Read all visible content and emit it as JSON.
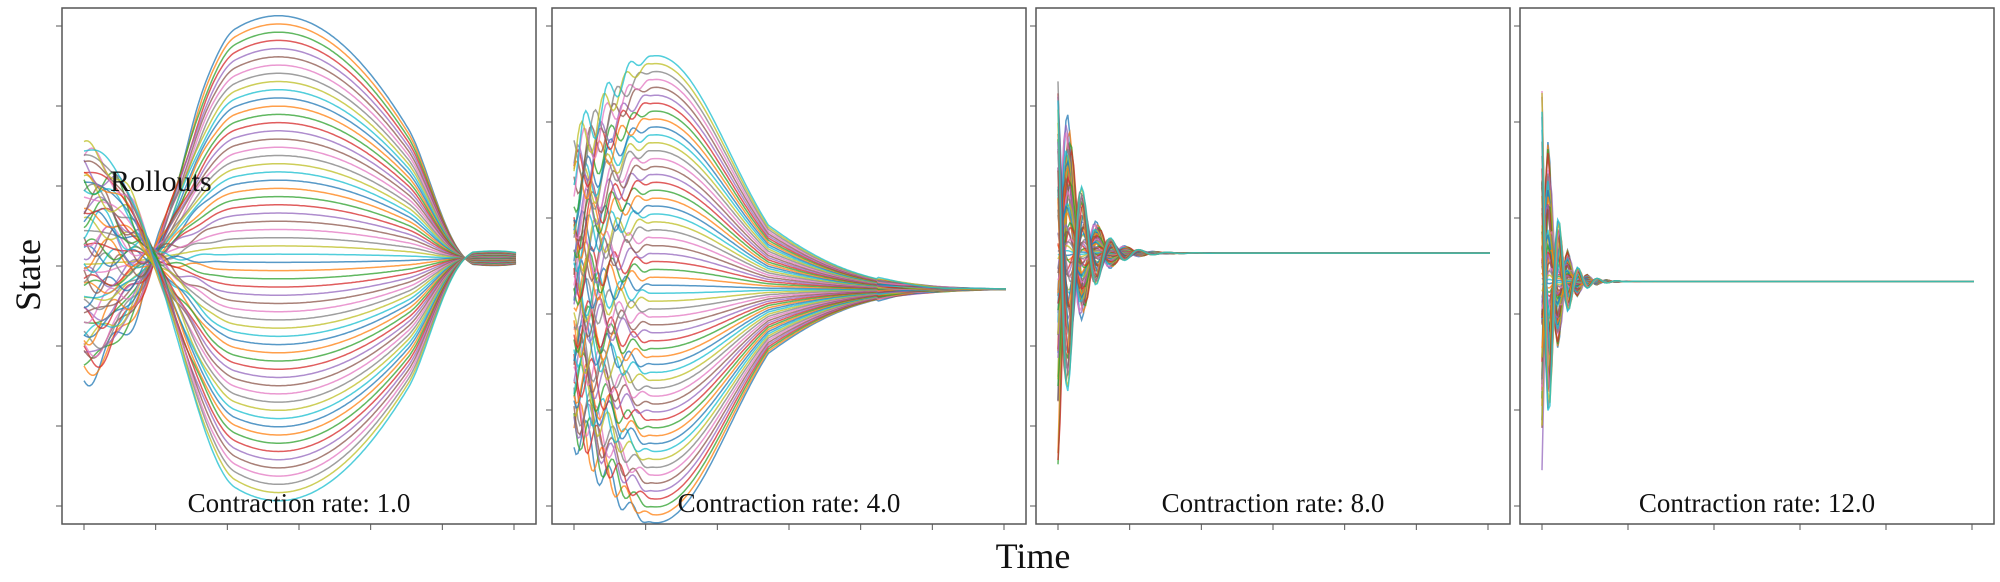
{
  "chart_data": [
    {
      "type": "line",
      "panel_label": "Contraction rate: 1.0",
      "contraction_rate": 1.0,
      "annotation": "Rollouts",
      "n_series": 60,
      "pattern": "trajectories start spread out, fan out to a large swing mid-horizon, then converge slowly near the end"
    },
    {
      "type": "line",
      "panel_label": "Contraction rate: 4.0",
      "contraction_rate": 4.0,
      "n_series": 60,
      "pattern": "trajectories spread widely early, then converge to a common value by about two-thirds of the horizon"
    },
    {
      "type": "line",
      "panel_label": "Contraction rate: 8.0",
      "contraction_rate": 8.0,
      "n_series": 60,
      "pattern": "short large oscillation at the start, then rapid convergence to a flat line"
    },
    {
      "type": "line",
      "panel_label": "Contraction rate: 12.0",
      "contraction_rate": 12.0,
      "n_series": 60,
      "pattern": "very short sharp oscillation at the start, then near-immediate convergence to a flat line"
    }
  ],
  "shared": {
    "xlabel": "Time",
    "ylabel": "State",
    "grid": false,
    "legend": "none",
    "tick_labels": "none"
  },
  "palette": [
    "#1f77b4",
    "#ff7f0e",
    "#2ca02c",
    "#d62728",
    "#9467bd",
    "#8c564b",
    "#e377c2",
    "#7f7f7f",
    "#bcbd22",
    "#17becf"
  ]
}
